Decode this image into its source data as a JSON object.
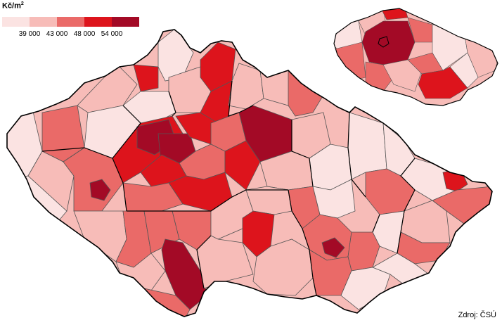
{
  "legend": {
    "unit": "Kč/m",
    "unit_sup": "2",
    "ticks": [
      "39 000",
      "43 000",
      "48 000",
      "54 000"
    ],
    "classes": [
      {
        "range": "< 39 000",
        "color": "#fbe3e2"
      },
      {
        "range": "39 000 – 43 000",
        "color": "#f7bcb8"
      },
      {
        "range": "43 000 – 48 000",
        "color": "#ea6a68"
      },
      {
        "range": "48 000 – 54 000",
        "color": "#dd141c"
      },
      {
        "range": "> 54 000",
        "color": "#a30a26"
      }
    ]
  },
  "source": "Zdroj: ČSÚ",
  "colors": {
    "border": "#000000",
    "district_border": "#555555"
  }
}
